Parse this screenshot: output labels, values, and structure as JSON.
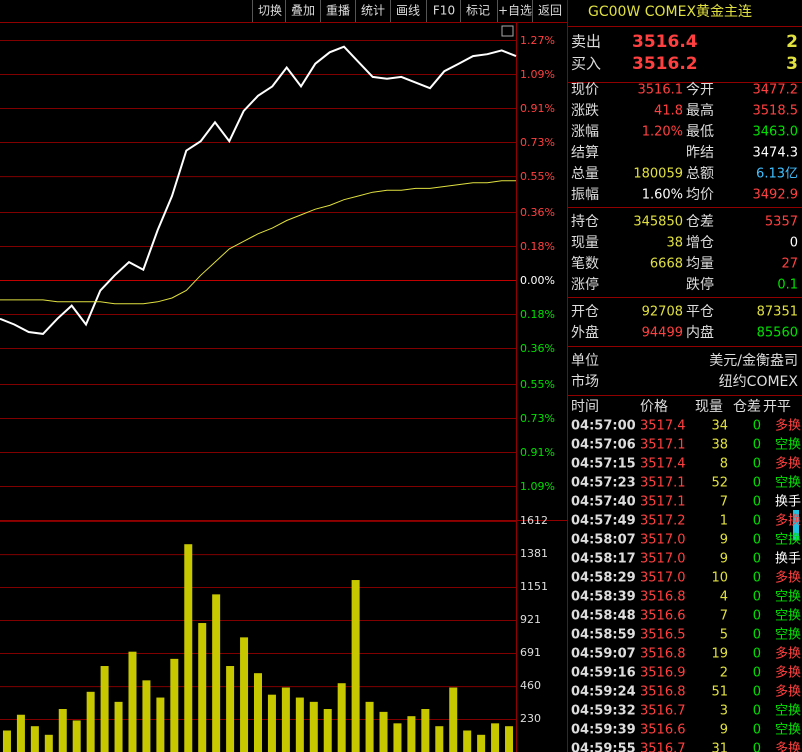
{
  "toolbar": [
    "切换",
    "叠加",
    "重播",
    "统计",
    "画线",
    "F10",
    "标记",
    "+自选",
    "返回"
  ],
  "chart_data": {
    "type": "line",
    "ylim": [
      -1.09,
      1.27
    ],
    "yticks": [
      {
        "value": 1.27,
        "label": "1.27%"
      },
      {
        "value": 1.09,
        "label": "1.09%"
      },
      {
        "value": 0.91,
        "label": "0.91%"
      },
      {
        "value": 0.73,
        "label": "0.73%"
      },
      {
        "value": 0.55,
        "label": "0.55%"
      },
      {
        "value": 0.36,
        "label": "0.36%"
      },
      {
        "value": 0.18,
        "label": "0.18%"
      },
      {
        "value": 0,
        "label": "0.00%"
      },
      {
        "value": -0.18,
        "label": "0.18%"
      },
      {
        "value": -0.36,
        "label": "0.36%"
      },
      {
        "value": -0.55,
        "label": "0.55%"
      },
      {
        "value": -0.73,
        "label": "0.73%"
      },
      {
        "value": -0.91,
        "label": "0.91%"
      },
      {
        "value": -1.09,
        "label": "1.09%"
      }
    ],
    "grid": true,
    "series": [
      {
        "color": "#ffffff",
        "values": [
          -0.2,
          -0.23,
          -0.27,
          -0.28,
          -0.2,
          -0.13,
          -0.23,
          -0.05,
          0.03,
          0.1,
          0.06,
          0.27,
          0.45,
          0.69,
          0.74,
          0.84,
          0.74,
          0.9,
          0.98,
          1.03,
          1.13,
          1.03,
          1.15,
          1.21,
          1.24,
          1.16,
          1.08,
          1.07,
          1.08,
          1.05,
          1.02,
          1.11,
          1.15,
          1.19,
          1.2,
          1.22,
          1.19
        ]
      },
      {
        "color": "#e0e040",
        "values": [
          -0.1,
          -0.1,
          -0.1,
          -0.1,
          -0.11,
          -0.11,
          -0.11,
          -0.11,
          -0.12,
          -0.12,
          -0.12,
          -0.11,
          -0.09,
          -0.05,
          0.03,
          0.1,
          0.17,
          0.21,
          0.25,
          0.28,
          0.32,
          0.35,
          0.38,
          0.4,
          0.43,
          0.45,
          0.47,
          0.48,
          0.48,
          0.49,
          0.49,
          0.5,
          0.51,
          0.52,
          0.52,
          0.53,
          0.53
        ]
      }
    ],
    "volume": {
      "color": "#c8c800",
      "ylim": [
        0,
        1612
      ],
      "yticks": [
        1612,
        1381,
        1151,
        921,
        691,
        460,
        230
      ],
      "values": [
        150,
        260,
        180,
        120,
        300,
        220,
        420,
        600,
        350,
        700,
        500,
        380,
        650,
        1450,
        900,
        1100,
        600,
        800,
        550,
        400,
        450,
        380,
        350,
        300,
        480,
        1200,
        350,
        280,
        200,
        250,
        300,
        180,
        450,
        150,
        120,
        200,
        180
      ]
    }
  },
  "quote": {
    "title": "GC00W COMEX黄金主连",
    "bidask": [
      {
        "label": "卖出",
        "price": "3516.4",
        "qty": "2"
      },
      {
        "label": "买入",
        "price": "3516.2",
        "qty": "3"
      }
    ],
    "groups": [
      [
        {
          "label": "现价",
          "value": "3516.1",
          "value_color": "#ff4040",
          "label2": "今开",
          "value2": "3477.2",
          "value2_color": "#ff4040"
        },
        {
          "label": "涨跌",
          "value": "41.8",
          "value_color": "#ff4040",
          "label2": "最高",
          "value2": "3518.5",
          "value2_color": "#ff4040"
        },
        {
          "label": "涨幅",
          "value": "1.20%",
          "value_color": "#ff4040",
          "label2": "最低",
          "value2": "3463.0",
          "value2_color": "#00e000"
        },
        {
          "label": "结算",
          "label2": "昨结",
          "value2": "3474.3",
          "value2_color": "#ffffff"
        },
        {
          "label": "总量",
          "value": "180059",
          "value_color": "#e0e040",
          "label2": "总额",
          "value2": "6.13亿",
          "value2_color": "#40c0ff"
        },
        {
          "label": "振幅",
          "value": "1.60%",
          "value_color": "#ffffff",
          "label2": "均价",
          "value2": "3492.9",
          "value2_color": "#ff4040"
        }
      ],
      [
        {
          "label": "持仓",
          "value": "345850",
          "value_color": "#e0e040",
          "label2": "仓差",
          "value2": "5357",
          "value2_color": "#ff4040"
        },
        {
          "label": "现量",
          "value": "38",
          "value_color": "#e0e040",
          "label2": "增仓",
          "value2": "0",
          "value2_color": "#ffffff"
        },
        {
          "label": "笔数",
          "value": "6668",
          "value_color": "#e0e040",
          "label2": "均量",
          "value2": "27",
          "value2_color": "#ff4040"
        },
        {
          "label": "涨停",
          "label2": "跌停",
          "value2": "0.1",
          "value2_color": "#00e000"
        }
      ],
      [
        {
          "label": "开仓",
          "value": "92708",
          "value_color": "#e0e040",
          "label2": "平仓",
          "value2": "87351",
          "value2_color": "#e0e040"
        },
        {
          "label": "外盘",
          "value": "94499",
          "value_color": "#ff4040",
          "label2": "内盘",
          "value2": "85560",
          "value2_color": "#00e000"
        }
      ]
    ],
    "info": [
      {
        "label": "单位",
        "value": "美元/金衡盎司"
      },
      {
        "label": "市场",
        "value": "纽约COMEX"
      }
    ]
  },
  "ticks": {
    "header": [
      "时间",
      "价格",
      "现量",
      "仓差",
      "开平"
    ],
    "rows": [
      {
        "time": "04:57:00",
        "price": "3517.4",
        "vol": "34",
        "diff": "0",
        "type": "多换",
        "type_color": "#ff4040"
      },
      {
        "time": "04:57:06",
        "price": "3517.1",
        "vol": "38",
        "diff": "0",
        "type": "空换",
        "type_color": "#00e000"
      },
      {
        "time": "04:57:15",
        "price": "3517.4",
        "vol": "8",
        "diff": "0",
        "type": "多换",
        "type_color": "#ff4040"
      },
      {
        "time": "04:57:23",
        "price": "3517.1",
        "vol": "52",
        "diff": "0",
        "type": "空换",
        "type_color": "#00e000"
      },
      {
        "time": "04:57:40",
        "price": "3517.1",
        "vol": "7",
        "diff": "0",
        "type": "换手",
        "type_color": "#ffffff"
      },
      {
        "time": "04:57:49",
        "price": "3517.2",
        "vol": "1",
        "diff": "0",
        "type": "多换",
        "type_color": "#ff4040"
      },
      {
        "time": "04:58:07",
        "price": "3517.0",
        "vol": "9",
        "diff": "0",
        "type": "空换",
        "type_color": "#00e000"
      },
      {
        "time": "04:58:17",
        "price": "3517.0",
        "vol": "9",
        "diff": "0",
        "type": "换手",
        "type_color": "#ffffff"
      },
      {
        "time": "04:58:29",
        "price": "3517.0",
        "vol": "10",
        "diff": "0",
        "type": "多换",
        "type_color": "#ff4040"
      },
      {
        "time": "04:58:39",
        "price": "3516.8",
        "vol": "4",
        "diff": "0",
        "type": "空换",
        "type_color": "#00e000"
      },
      {
        "time": "04:58:48",
        "price": "3516.6",
        "vol": "7",
        "diff": "0",
        "type": "空换",
        "type_color": "#00e000"
      },
      {
        "time": "04:58:59",
        "price": "3516.5",
        "vol": "5",
        "diff": "0",
        "type": "空换",
        "type_color": "#00e000"
      },
      {
        "time": "04:59:07",
        "price": "3516.8",
        "vol": "19",
        "diff": "0",
        "type": "多换",
        "type_color": "#ff4040"
      },
      {
        "time": "04:59:16",
        "price": "3516.9",
        "vol": "2",
        "diff": "0",
        "type": "多换",
        "type_color": "#ff4040"
      },
      {
        "time": "04:59:24",
        "price": "3516.8",
        "vol": "51",
        "diff": "0",
        "type": "多换",
        "type_color": "#ff4040"
      },
      {
        "time": "04:59:32",
        "price": "3516.7",
        "vol": "3",
        "diff": "0",
        "type": "空换",
        "type_color": "#00e000"
      },
      {
        "time": "04:59:39",
        "price": "3516.6",
        "vol": "9",
        "diff": "0",
        "type": "空换",
        "type_color": "#00e000"
      },
      {
        "time": "04:59:55",
        "price": "3516.7",
        "vol": "31",
        "diff": "0",
        "type": "多换",
        "type_color": "#ff4040"
      }
    ]
  }
}
